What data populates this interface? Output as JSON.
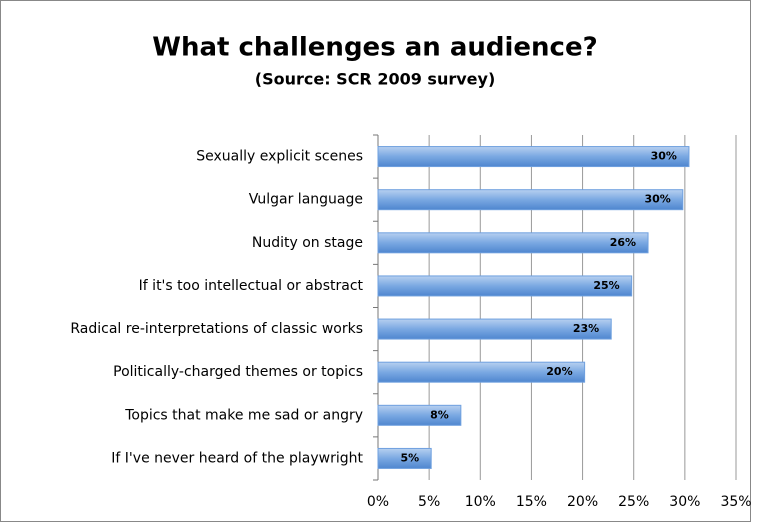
{
  "chart_data": {
    "type": "bar",
    "orientation": "horizontal",
    "title": "What challenges an audience?",
    "subtitle": "(Source: SCR 2009 survey)",
    "categories": [
      "Sexually explicit scenes",
      "Vulgar language",
      "Nudity on stage",
      "If it's too intellectual or abstract",
      "Radical re-interpretations of classic works",
      "Politically-charged themes or topics",
      "Topics that make me sad or angry",
      "If I've never heard of the playwright"
    ],
    "values": [
      30.4,
      29.8,
      26.4,
      24.8,
      22.8,
      20.2,
      8.1,
      5.2
    ],
    "value_labels": [
      "30%",
      "30%",
      "26%",
      "25%",
      "23%",
      "20%",
      "8%",
      "5%"
    ],
    "color": "#6fa0df",
    "xlim": [
      0,
      35
    ],
    "xticks": [
      {
        "value": 0,
        "label": "0%"
      },
      {
        "value": 5,
        "label": "5%"
      },
      {
        "value": 10,
        "label": "10%"
      },
      {
        "value": 15,
        "label": "15%"
      },
      {
        "value": 20,
        "label": "20%"
      },
      {
        "value": 25,
        "label": "25%"
      },
      {
        "value": 30,
        "label": "30%"
      },
      {
        "value": 35,
        "label": "35%"
      }
    ],
    "grid": true
  }
}
